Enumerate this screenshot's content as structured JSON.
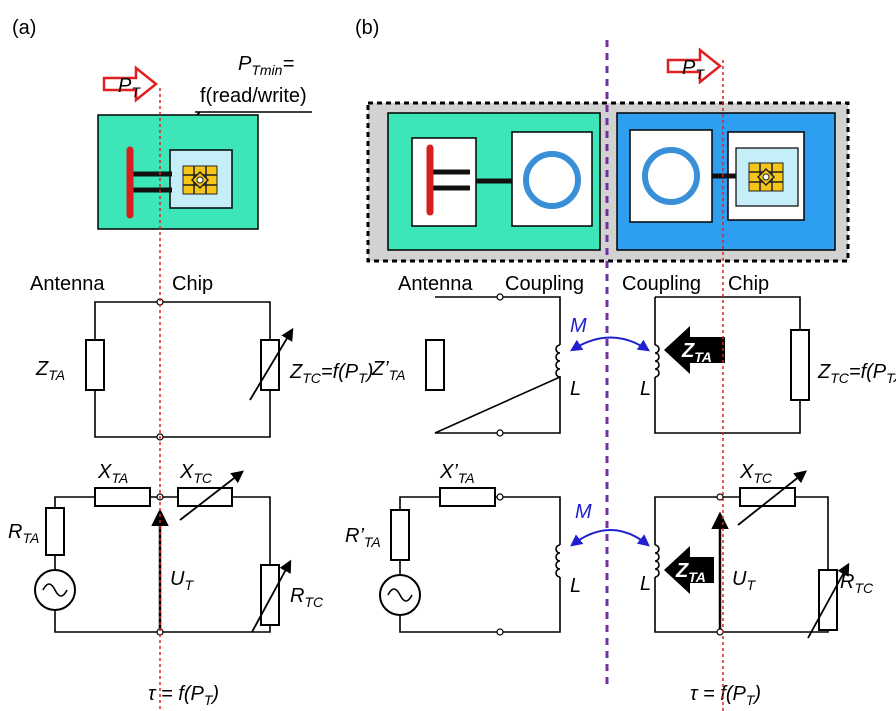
{
  "panel_a": {
    "label": "(a)",
    "input": [
      "P",
      "T"
    ],
    "annotation": {
      "line1": [
        "P",
        "Tmin",
        "="
      ],
      "line2": "f(read/write)"
    },
    "block_labels": [
      "Antenna",
      "Chip"
    ],
    "circuit_1": {
      "z_ta": [
        "Z",
        "TA"
      ],
      "z_tc": [
        "Z",
        "TC",
        "=f(P",
        "T",
        ")"
      ]
    },
    "circuit_2": {
      "x_ta": [
        "X",
        "TA"
      ],
      "x_tc": [
        "X",
        "TC"
      ],
      "r_ta": [
        "R",
        "TA"
      ],
      "u_t": [
        "U",
        "T"
      ],
      "r_tc": [
        "R",
        "TC"
      ]
    },
    "footer": [
      "τ  = f(P",
      "T",
      ")"
    ]
  },
  "panel_b": {
    "label": "(b)",
    "input": [
      "P",
      "T"
    ],
    "block_labels": [
      "Antenna",
      "Coupling",
      "Coupling",
      "Chip"
    ],
    "circuit_1": {
      "z_ta": [
        "Z’",
        "TA"
      ],
      "m": "M",
      "l_left": "L",
      "l_right": "L",
      "z_ta_arrow": [
        "Z",
        "TA"
      ],
      "z_tc": [
        "Z",
        "TC",
        "=f(P",
        "T",
        ")"
      ]
    },
    "circuit_2": {
      "x_ta": [
        "X’",
        "TA"
      ],
      "r_ta": [
        "R’",
        "TA"
      ],
      "m": "M",
      "l_left": "L",
      "l_right": "L",
      "z_ta_arrow": [
        "Z",
        "TA"
      ],
      "u_t": [
        "U",
        "T"
      ],
      "x_tc": [
        "X",
        "TC"
      ],
      "r_tc": [
        "R",
        "TC"
      ]
    },
    "footer": [
      "τ  = f(P",
      "T",
      ")"
    ]
  }
}
